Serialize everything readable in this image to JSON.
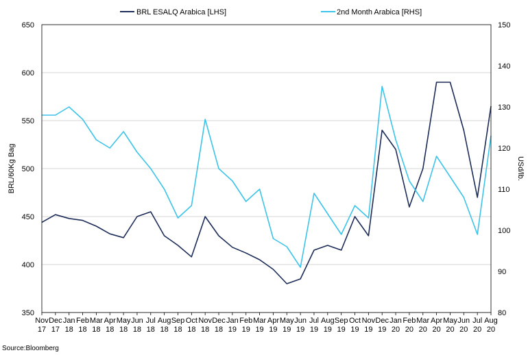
{
  "chart_data": {
    "type": "line",
    "title": "",
    "source": "Source:Bloomberg",
    "ylabel": "BRL/60Kg Bag",
    "y2label": "USd/lb.",
    "ylim": [
      350,
      650
    ],
    "y2lim": [
      80,
      150
    ],
    "yticks": [
      "350",
      "400",
      "450",
      "500",
      "550",
      "600",
      "650"
    ],
    "y2ticks": [
      "80",
      "90",
      "100",
      "110",
      "120",
      "130",
      "140",
      "150"
    ],
    "grid": true,
    "legend_position": "top",
    "xticks": [
      {
        "month": "Nov",
        "year": "17"
      },
      {
        "month": "Dec",
        "year": "17"
      },
      {
        "month": "Jan",
        "year": "18"
      },
      {
        "month": "Feb",
        "year": "18"
      },
      {
        "month": "Mar",
        "year": "18"
      },
      {
        "month": "Apr",
        "year": "18"
      },
      {
        "month": "May",
        "year": "18"
      },
      {
        "month": "Jun",
        "year": "18"
      },
      {
        "month": "Jul",
        "year": "18"
      },
      {
        "month": "Aug",
        "year": "18"
      },
      {
        "month": "Sep",
        "year": "18"
      },
      {
        "month": "Oct",
        "year": "18"
      },
      {
        "month": "Nov",
        "year": "18"
      },
      {
        "month": "Dec",
        "year": "18"
      },
      {
        "month": "Jan",
        "year": "19"
      },
      {
        "month": "Feb",
        "year": "19"
      },
      {
        "month": "Mar",
        "year": "19"
      },
      {
        "month": "Apr",
        "year": "19"
      },
      {
        "month": "May",
        "year": "19"
      },
      {
        "month": "Jun",
        "year": "19"
      },
      {
        "month": "Jul",
        "year": "19"
      },
      {
        "month": "Aug",
        "year": "19"
      },
      {
        "month": "Sep",
        "year": "19"
      },
      {
        "month": "Oct",
        "year": "19"
      },
      {
        "month": "Nov",
        "year": "19"
      },
      {
        "month": "Dec",
        "year": "19"
      },
      {
        "month": "Jan",
        "year": "20"
      },
      {
        "month": "Feb",
        "year": "20"
      },
      {
        "month": "Mar",
        "year": "20"
      },
      {
        "month": "Apr",
        "year": "20"
      },
      {
        "month": "May",
        "year": "20"
      },
      {
        "month": "Jun",
        "year": "20"
      },
      {
        "month": "Jul",
        "year": "20"
      },
      {
        "month": "Aug",
        "year": "20"
      }
    ],
    "x": [
      "Nov 17",
      "Dec 17",
      "Jan 18",
      "Feb 18",
      "Mar 18",
      "Apr 18",
      "May 18",
      "Jun 18",
      "Jul 18",
      "Aug 18",
      "Sep 18",
      "Oct 18",
      "Nov 18",
      "Dec 18",
      "Jan 19",
      "Feb 19",
      "Mar 19",
      "Apr 19",
      "May 19",
      "Jun 19",
      "Jul 19",
      "Aug 19",
      "Sep 19",
      "Oct 19",
      "Nov 19",
      "Dec 19",
      "Jan 20",
      "Feb 20",
      "Mar 20",
      "Apr 20",
      "May 20",
      "Jun 20",
      "Jul 20",
      "Aug 20"
    ],
    "series": [
      {
        "name": "BRL ESALQ Arabica [LHS]",
        "axis": "left",
        "color": "#1b2a56",
        "values": [
          444,
          452,
          448,
          446,
          440,
          432,
          428,
          450,
          455,
          430,
          420,
          408,
          450,
          430,
          418,
          412,
          405,
          395,
          380,
          385,
          415,
          420,
          415,
          450,
          430,
          540,
          520,
          460,
          500,
          590,
          590,
          540,
          470,
          565
        ]
      },
      {
        "name": "2nd Month Arabica [RHS]",
        "axis": "right",
        "color": "#3cc3ea",
        "values": [
          128,
          128,
          130,
          127,
          122,
          120,
          124,
          119,
          115,
          110,
          103,
          106,
          127,
          115,
          112,
          107,
          110,
          98,
          96,
          91,
          109,
          104,
          99,
          106,
          103,
          135,
          122,
          112,
          107,
          118,
          113,
          108,
          99,
          123
        ]
      }
    ]
  }
}
